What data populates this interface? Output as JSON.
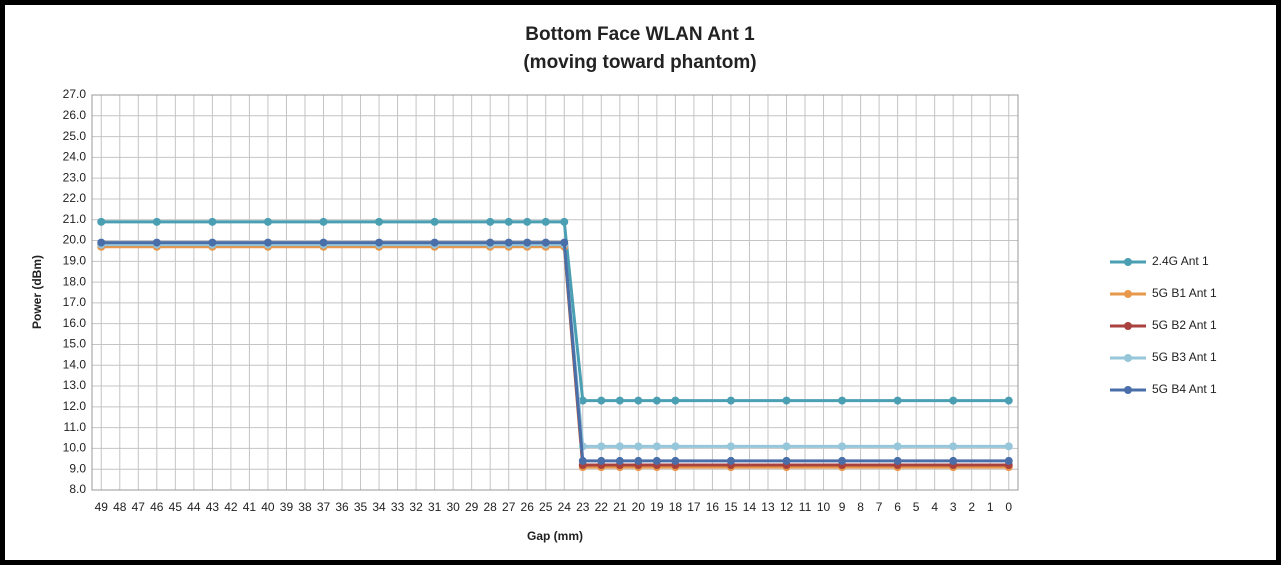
{
  "chart_data": {
    "type": "line",
    "title": "Bottom Face WLAN Ant 1",
    "subtitle": "(moving toward phantom)",
    "x_label": "Gap (mm)",
    "y_label": "Power (dBm)",
    "x": [
      49,
      46,
      43,
      40,
      37,
      34,
      31,
      28,
      27,
      26,
      25,
      24,
      23,
      22,
      21,
      20,
      19,
      18,
      15,
      12,
      9,
      6,
      3,
      0
    ],
    "series": [
      {
        "name": "2.4G Ant 1",
        "color": "#4a9fb2",
        "values": [
          20.9,
          20.9,
          20.9,
          20.9,
          20.9,
          20.9,
          20.9,
          20.9,
          20.9,
          20.9,
          20.9,
          20.9,
          12.3,
          12.3,
          12.3,
          12.3,
          12.3,
          12.3,
          12.3,
          12.3,
          12.3,
          12.3,
          12.3,
          12.3
        ]
      },
      {
        "name": "5G B1 Ant 1",
        "color": "#e8984a",
        "values": [
          19.7,
          19.7,
          19.7,
          19.7,
          19.7,
          19.7,
          19.7,
          19.7,
          19.7,
          19.7,
          19.7,
          19.7,
          9.1,
          9.1,
          9.1,
          9.1,
          9.1,
          9.1,
          9.1,
          9.1,
          9.1,
          9.1,
          9.1,
          9.1
        ]
      },
      {
        "name": "5G B2 Ant 1",
        "color": "#a9423f",
        "values": [
          19.8,
          19.8,
          19.8,
          19.8,
          19.8,
          19.8,
          19.8,
          19.8,
          19.8,
          19.8,
          19.8,
          19.8,
          9.2,
          9.2,
          9.2,
          9.2,
          9.2,
          9.2,
          9.2,
          9.2,
          9.2,
          9.2,
          9.2,
          9.2
        ]
      },
      {
        "name": "5G B3 Ant 1",
        "color": "#95c6da",
        "values": [
          19.8,
          19.8,
          19.8,
          19.8,
          19.8,
          19.8,
          19.8,
          19.8,
          19.8,
          19.8,
          19.8,
          19.8,
          10.1,
          10.1,
          10.1,
          10.1,
          10.1,
          10.1,
          10.1,
          10.1,
          10.1,
          10.1,
          10.1,
          10.1
        ]
      },
      {
        "name": "5G B4 Ant 1",
        "color": "#4a6fa8",
        "values": [
          19.9,
          19.9,
          19.9,
          19.9,
          19.9,
          19.9,
          19.9,
          19.9,
          19.9,
          19.9,
          19.9,
          19.9,
          9.4,
          9.4,
          9.4,
          9.4,
          9.4,
          9.4,
          9.4,
          9.4,
          9.4,
          9.4,
          9.4,
          9.4
        ]
      }
    ],
    "xlim": [
      49.5,
      -0.5
    ],
    "xticks": [
      49,
      48,
      47,
      46,
      45,
      44,
      43,
      42,
      41,
      40,
      39,
      38,
      37,
      36,
      35,
      34,
      33,
      32,
      31,
      30,
      29,
      28,
      27,
      26,
      25,
      24,
      23,
      22,
      21,
      20,
      19,
      18,
      17,
      16,
      15,
      14,
      13,
      12,
      11,
      10,
      9,
      8,
      7,
      6,
      5,
      4,
      3,
      2,
      1,
      0
    ],
    "ylim": [
      8,
      27
    ],
    "yticks": [
      {
        "value": 8,
        "label": "8.0"
      },
      {
        "value": 9,
        "label": "9.0"
      },
      {
        "value": 10,
        "label": "10.0"
      },
      {
        "value": 11,
        "label": "11.0"
      },
      {
        "value": 12,
        "label": "12.0"
      },
      {
        "value": 13,
        "label": "13.0"
      },
      {
        "value": 14,
        "label": "14.0"
      },
      {
        "value": 15,
        "label": "15.0"
      },
      {
        "value": 16,
        "label": "16.0"
      },
      {
        "value": 17,
        "label": "17.0"
      },
      {
        "value": 18,
        "label": "18.0"
      },
      {
        "value": 19,
        "label": "19.0"
      },
      {
        "value": 20,
        "label": "20.0"
      },
      {
        "value": 21,
        "label": "21.0"
      },
      {
        "value": 22,
        "label": "22.0"
      },
      {
        "value": 23,
        "label": "23.0"
      },
      {
        "value": 24,
        "label": "24.0"
      },
      {
        "value": 25,
        "label": "25.0"
      },
      {
        "value": 26,
        "label": "26.0"
      },
      {
        "value": 27,
        "label": "27.0"
      }
    ],
    "grid": true,
    "legend": "right"
  }
}
